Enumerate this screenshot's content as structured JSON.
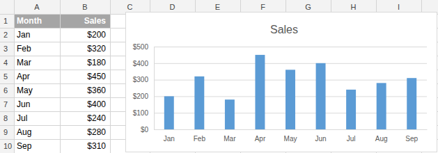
{
  "sheet": {
    "columns": [
      "A",
      "B",
      "C",
      "D",
      "E",
      "F",
      "G",
      "H",
      "I"
    ],
    "rows": [
      1,
      2,
      3,
      4,
      5,
      6,
      7,
      8,
      9,
      10
    ],
    "table": {
      "header": [
        "Month",
        "Sales"
      ],
      "rows": [
        [
          "Jan",
          "$200"
        ],
        [
          "Feb",
          "$320"
        ],
        [
          "Mar",
          "$180"
        ],
        [
          "Apr",
          "$450"
        ],
        [
          "May",
          "$360"
        ],
        [
          "Jun",
          "$400"
        ],
        [
          "Jul",
          "$240"
        ],
        [
          "Aug",
          "$280"
        ],
        [
          "Sep",
          "$310"
        ]
      ]
    }
  },
  "chart_data": {
    "type": "bar",
    "title": "Sales",
    "categories": [
      "Jan",
      "Feb",
      "Mar",
      "Apr",
      "May",
      "Jun",
      "Jul",
      "Aug",
      "Sep"
    ],
    "values": [
      200,
      320,
      180,
      450,
      360,
      400,
      240,
      280,
      310
    ],
    "color": "#5b9bd5",
    "ylim": [
      0,
      500
    ],
    "yticks": [
      {
        "value": 0,
        "label": "$0"
      },
      {
        "value": 100,
        "label": "$100"
      },
      {
        "value": 200,
        "label": "$200"
      },
      {
        "value": 300,
        "label": "$300"
      },
      {
        "value": 400,
        "label": "$400"
      },
      {
        "value": 500,
        "label": "$500"
      }
    ],
    "grid": true
  }
}
